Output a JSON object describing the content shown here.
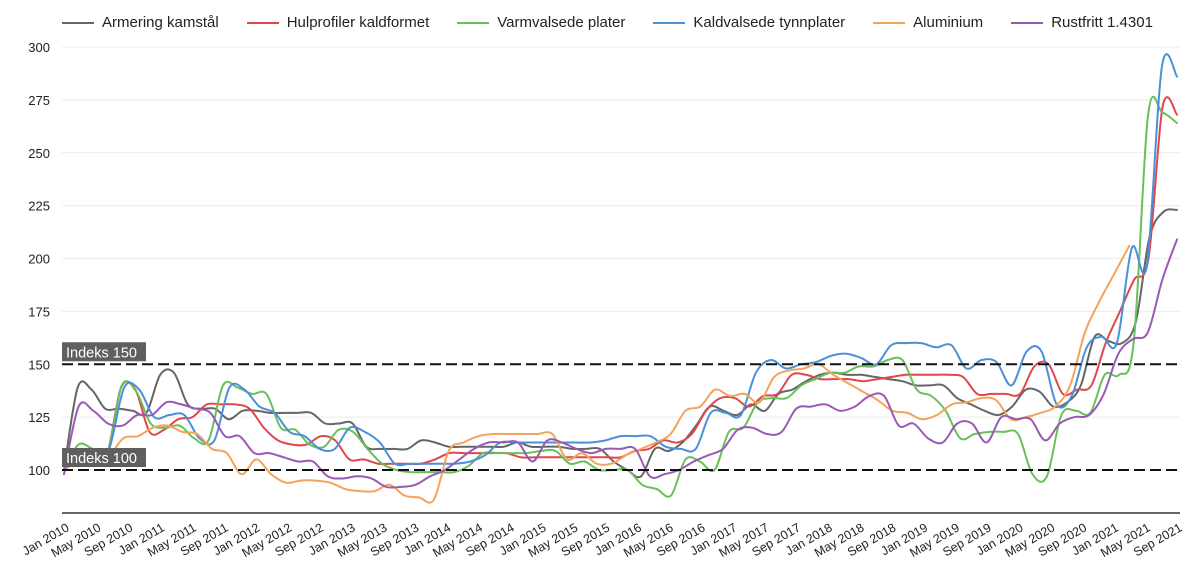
{
  "chart_data": {
    "type": "line",
    "title": "",
    "xlabel": "",
    "ylabel": "",
    "ylim": [
      80,
      300
    ],
    "yticks": [
      100,
      125,
      150,
      175,
      200,
      225,
      250,
      275,
      300
    ],
    "grid": true,
    "legend_position": "top",
    "x_start": "Jan 2010",
    "x_step_months": 2,
    "x_tick_labels": [
      "Jan 2010",
      "May 2010",
      "Sep 2010",
      "Jan 2011",
      "May 2011",
      "Sep 2011",
      "Jan 2012",
      "May 2012",
      "Sep 2012",
      "Jan 2013",
      "May 2013",
      "Sep 2013",
      "Jan 2014",
      "May 2014",
      "Sep 2014",
      "Jan 2015",
      "May 2015",
      "Sep 2015",
      "Jan 2016",
      "May 2016",
      "Sep 2016",
      "Jan 2017",
      "May 2017",
      "Sep 2017",
      "Jan 2018",
      "May 2018",
      "Sep 2018",
      "Jan 2019",
      "May 2019",
      "Sep 2019",
      "Jan 2020",
      "May 2020",
      "Sep 2020",
      "Jan 2021",
      "May 2021",
      "Sep 2021"
    ],
    "reference_lines": [
      {
        "value": 150,
        "label": "Indeks 150"
      },
      {
        "value": 100,
        "label": "Indeks 100"
      }
    ],
    "series": [
      {
        "name": "Armering kamstål",
        "color": "#666666",
        "values": [
          100,
          139,
          138,
          129,
          129,
          128,
          127,
          145,
          146,
          131,
          129,
          129,
          124,
          128,
          128,
          127,
          127,
          127,
          127,
          122,
          122,
          122,
          111,
          110,
          110,
          110,
          114,
          113,
          111,
          111,
          111,
          111,
          111,
          113,
          111,
          111,
          111,
          110,
          110,
          110,
          104,
          100,
          97,
          110,
          109,
          113,
          121,
          130,
          128,
          126,
          131,
          128,
          136,
          138,
          142,
          145,
          146,
          145,
          145,
          144,
          143,
          142,
          140,
          140,
          140,
          134,
          131,
          128,
          126,
          130,
          138,
          137,
          130,
          132,
          140,
          163,
          161,
          160,
          170,
          210,
          222,
          223
        ]
      },
      {
        "name": "Hulprofiler kaldformet",
        "color": "#e0474c",
        "values": [
          100,
          105,
          106,
          107,
          139,
          138,
          118,
          119,
          124,
          125,
          131,
          131,
          131,
          129,
          120,
          114,
          112,
          112,
          116,
          114,
          105,
          105,
          103,
          103,
          103,
          103,
          105,
          108,
          108,
          108,
          108,
          108,
          106,
          106,
          106,
          106,
          106,
          106,
          106,
          106,
          109,
          110,
          114,
          113,
          117,
          128,
          134,
          134,
          130,
          135,
          136,
          145,
          145,
          143,
          143,
          143,
          142,
          143,
          144,
          145,
          145,
          145,
          145,
          144,
          136,
          136,
          136,
          136,
          149,
          150,
          136,
          138,
          140,
          160,
          175,
          190,
          200,
          272,
          268
        ]
      },
      {
        "name": "Varmvalsede plater",
        "color": "#6abf5a",
        "values": [
          100,
          112,
          110,
          108,
          140,
          137,
          122,
          120,
          121,
          115,
          114,
          140,
          139,
          136,
          136,
          120,
          119,
          112,
          111,
          119,
          118,
          110,
          103,
          100,
          99,
          99,
          99,
          99,
          102,
          108,
          108,
          108,
          108,
          109,
          109,
          103,
          104,
          100,
          100,
          100,
          93,
          91,
          88,
          105,
          104,
          100,
          118,
          120,
          132,
          134,
          134,
          140,
          143,
          146,
          146,
          149,
          149,
          152,
          152,
          138,
          135,
          128,
          115,
          117,
          118,
          118,
          117,
          98,
          97,
          126,
          128,
          127,
          145,
          145,
          160,
          268,
          269,
          264
        ]
      },
      {
        "name": "Kaldvalsede tynnplater",
        "color": "#4a90d6",
        "values": [
          100,
          108,
          106,
          110,
          139,
          138,
          125,
          126,
          126,
          115,
          114,
          139,
          138,
          130,
          127,
          118,
          116,
          110,
          110,
          120,
          118,
          113,
          103,
          103,
          103,
          103,
          103,
          104,
          107,
          113,
          113,
          113,
          113,
          113,
          113,
          113,
          114,
          116,
          116,
          116,
          111,
          110,
          110,
          127,
          127,
          126,
          146,
          152,
          148,
          150,
          151,
          154,
          155,
          153,
          150,
          159,
          160,
          160,
          158,
          159,
          148,
          152,
          151,
          140,
          156,
          156,
          131,
          135,
          158,
          163,
          160,
          205,
          197,
          291,
          286
        ]
      },
      {
        "name": "Aluminium",
        "color": "#f5a35a",
        "values": [
          100,
          104,
          104,
          106,
          115,
          116,
          120,
          121,
          118,
          117,
          110,
          108,
          98,
          105,
          98,
          94,
          95,
          95,
          94,
          91,
          90,
          90,
          93,
          88,
          87,
          86,
          109,
          113,
          116,
          117,
          117,
          117,
          117,
          117,
          105,
          108,
          103,
          103,
          107,
          110,
          113,
          117,
          128,
          130,
          138,
          135,
          136,
          132,
          144,
          147,
          148,
          150,
          145,
          141,
          137,
          133,
          128,
          127,
          124,
          126,
          131,
          132,
          134,
          133,
          124,
          125,
          127,
          130,
          140,
          165,
          180,
          193,
          206
        ]
      },
      {
        "name": "Rustfritt 1.4301",
        "color": "#9b59b6",
        "values": [
          98,
          130,
          128,
          122,
          121,
          126,
          126,
          132,
          131,
          129,
          127,
          116,
          116,
          108,
          108,
          106,
          104,
          104,
          97,
          96,
          97,
          96,
          92,
          92,
          93,
          97,
          100,
          105,
          110,
          113,
          113,
          113,
          104,
          114,
          113,
          110,
          108,
          110,
          110,
          110,
          97,
          98,
          100,
          104,
          107,
          110,
          119,
          120,
          117,
          118,
          129,
          130,
          131,
          128,
          130,
          135,
          135,
          121,
          122,
          115,
          113,
          122,
          122,
          113,
          125,
          124,
          124,
          114,
          122,
          125,
          126,
          136,
          155,
          162,
          165,
          190,
          209
        ]
      }
    ]
  }
}
